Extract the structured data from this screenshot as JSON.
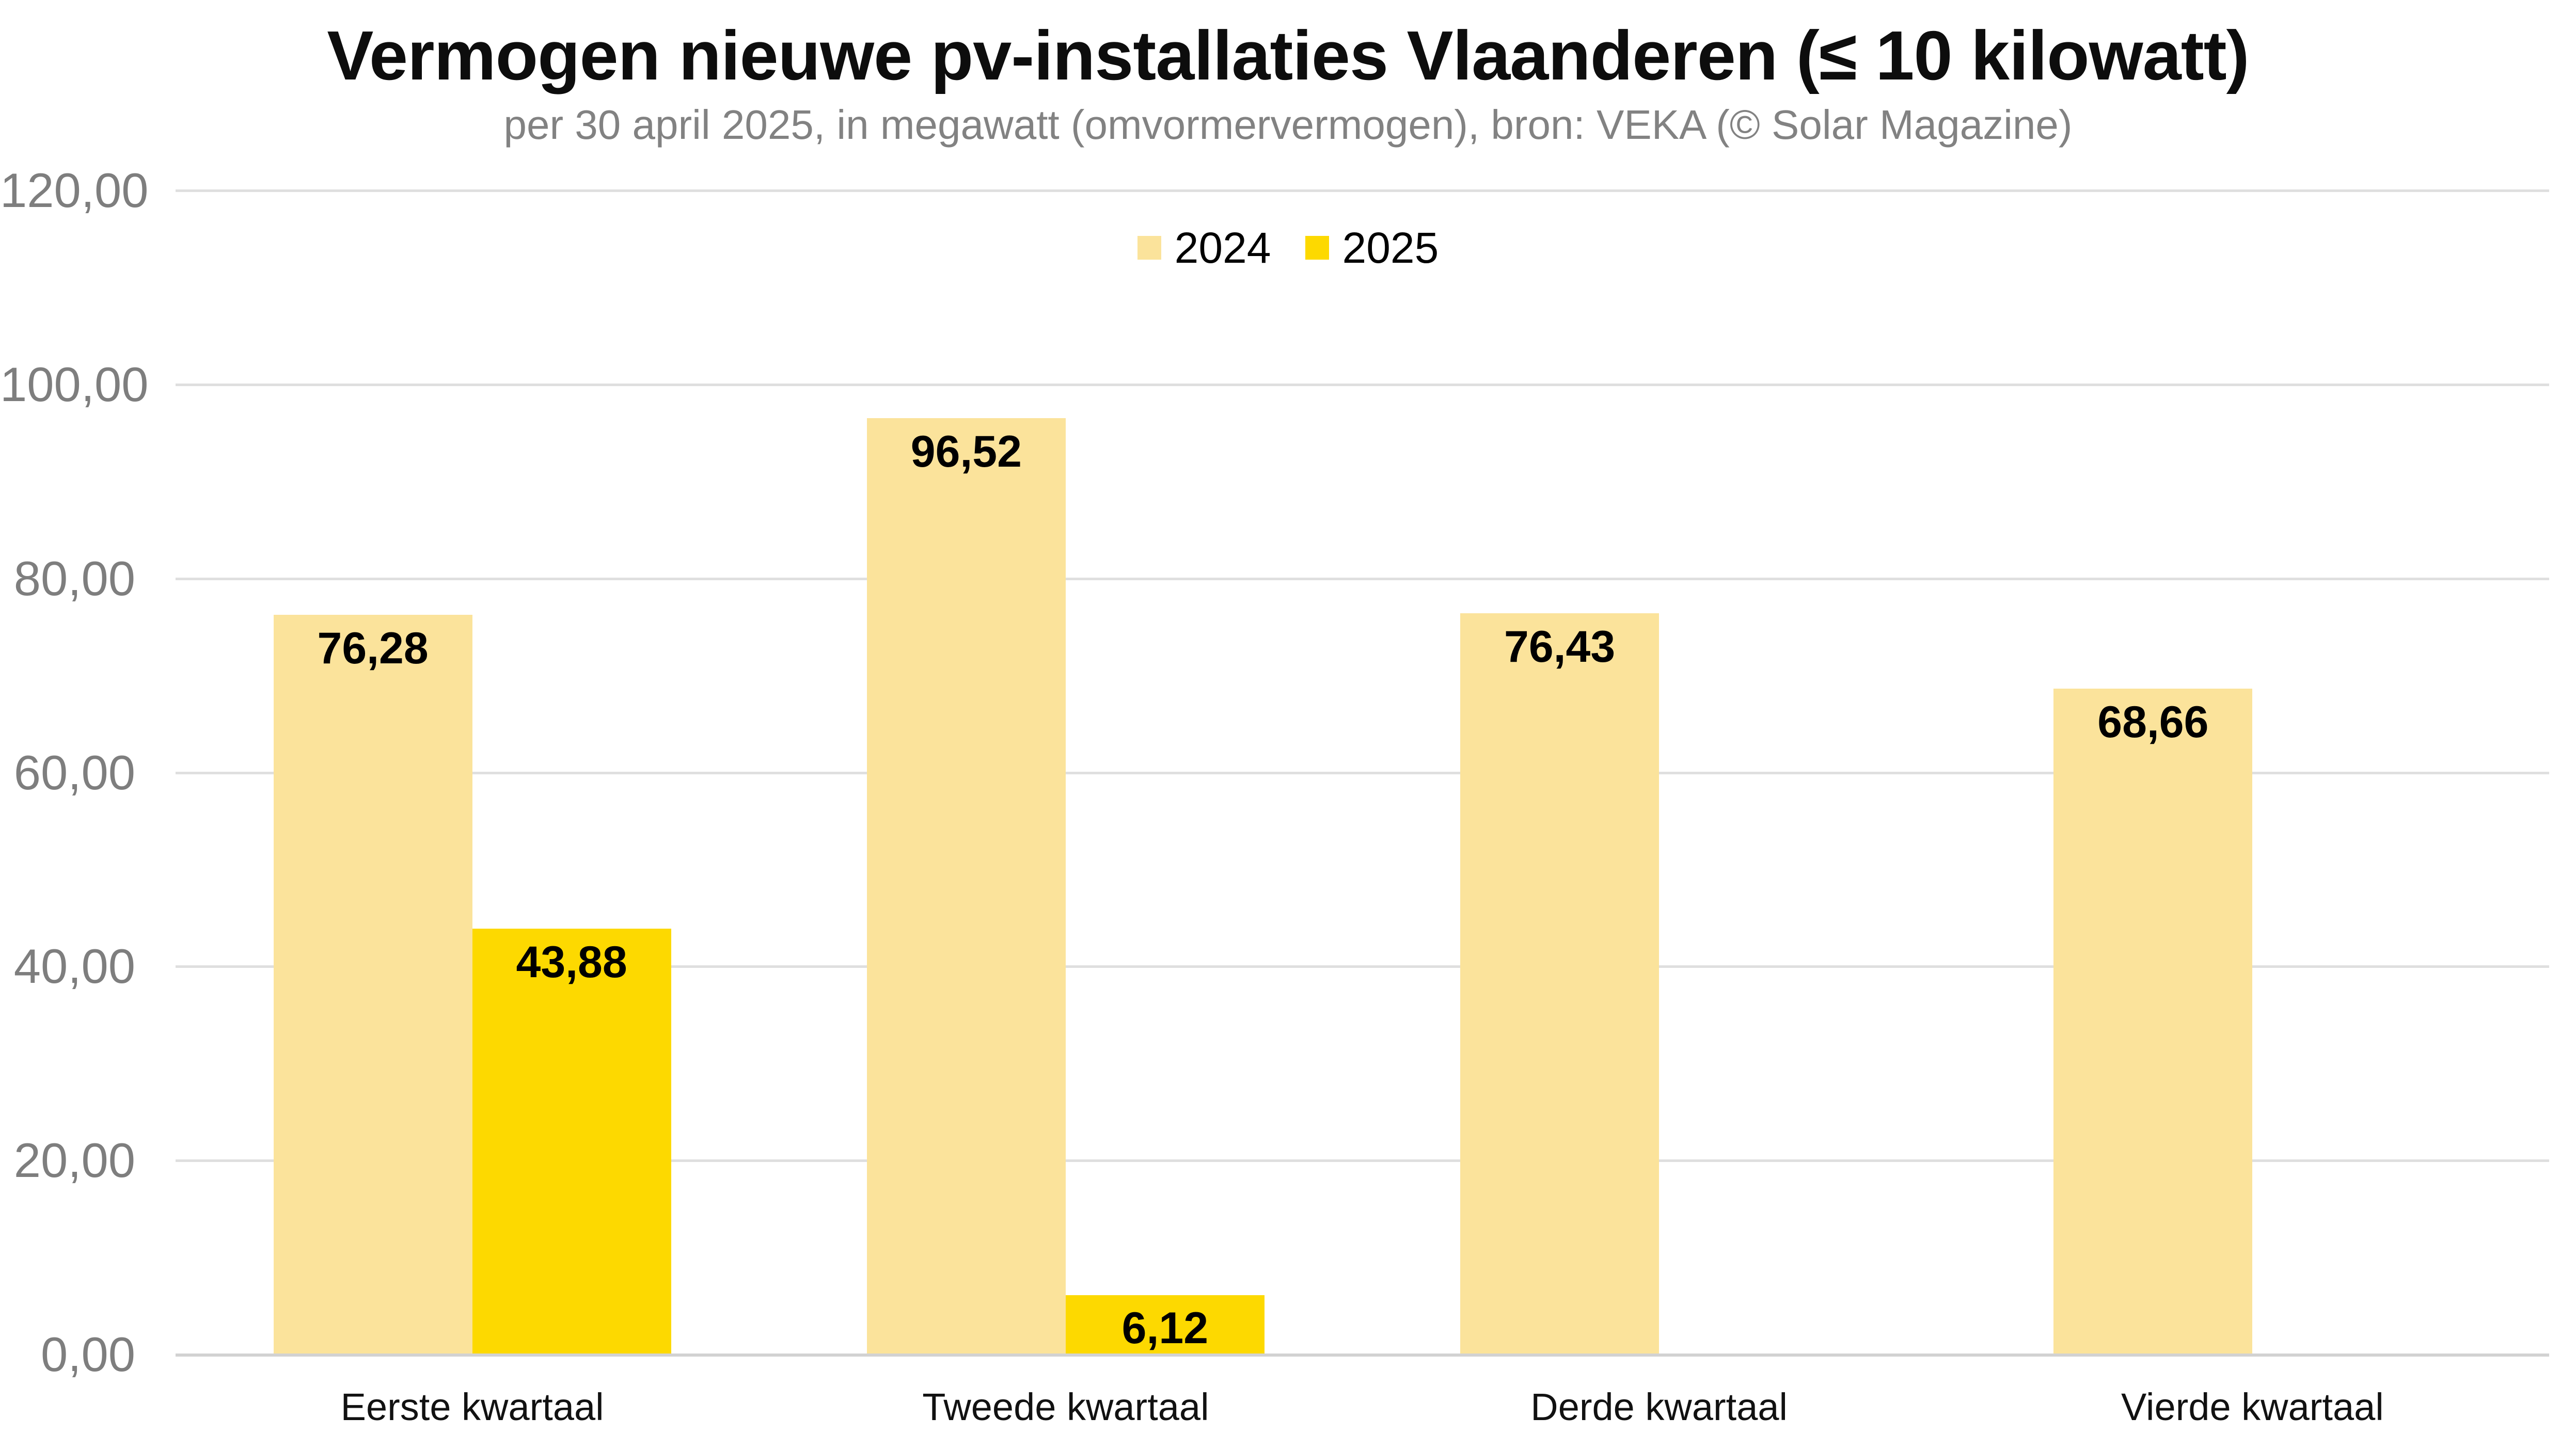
{
  "title": "Vermogen nieuwe pv-installaties Vlaanderen (≤ 10 kilowatt)",
  "subtitle": "per 30 april 2025, in megawatt (omvormervermogen), bron: VEKA (© Solar Magazine)",
  "legend": {
    "items": [
      {
        "label": "2024",
        "color": "#FBE39B"
      },
      {
        "label": "2025",
        "color": "#FDD900"
      }
    ],
    "position": "top-center-inside"
  },
  "chart_data": {
    "type": "bar",
    "categories": [
      "Eerste kwartaal",
      "Tweede kwartaal",
      "Derde kwartaal",
      "Vierde kwartaal"
    ],
    "series": [
      {
        "name": "2024",
        "color": "#FBE39B",
        "values": [
          76.28,
          96.52,
          76.43,
          68.66
        ],
        "value_labels": [
          "76,28",
          "96,52",
          "76,43",
          "68,66"
        ]
      },
      {
        "name": "2025",
        "color": "#FDD900",
        "values": [
          43.88,
          6.12,
          null,
          null
        ],
        "value_labels": [
          "43,88",
          "6,12",
          null,
          null
        ]
      }
    ],
    "xlabel": "",
    "ylabel": "",
    "ylim": [
      0,
      120
    ],
    "ytick_step": 20,
    "ytick_labels": [
      "120,00",
      "100,00",
      "80,00",
      "60,00",
      "40,00",
      "20,00",
      "0,00"
    ],
    "grid": "horizontal",
    "legend_position": "top",
    "value_labels_position": "inside-top"
  },
  "colors": {
    "background": "#FFFFFF",
    "series_2024": "#FBE39B",
    "series_2025": "#FDD900",
    "gridline": "#DFDFDF",
    "axis_line": "#D2D2D2",
    "axis_text": "#7E7E7E",
    "subtitle_text": "#828282",
    "title_text": "#0D0D0D",
    "bar_label_text": "#000000"
  }
}
